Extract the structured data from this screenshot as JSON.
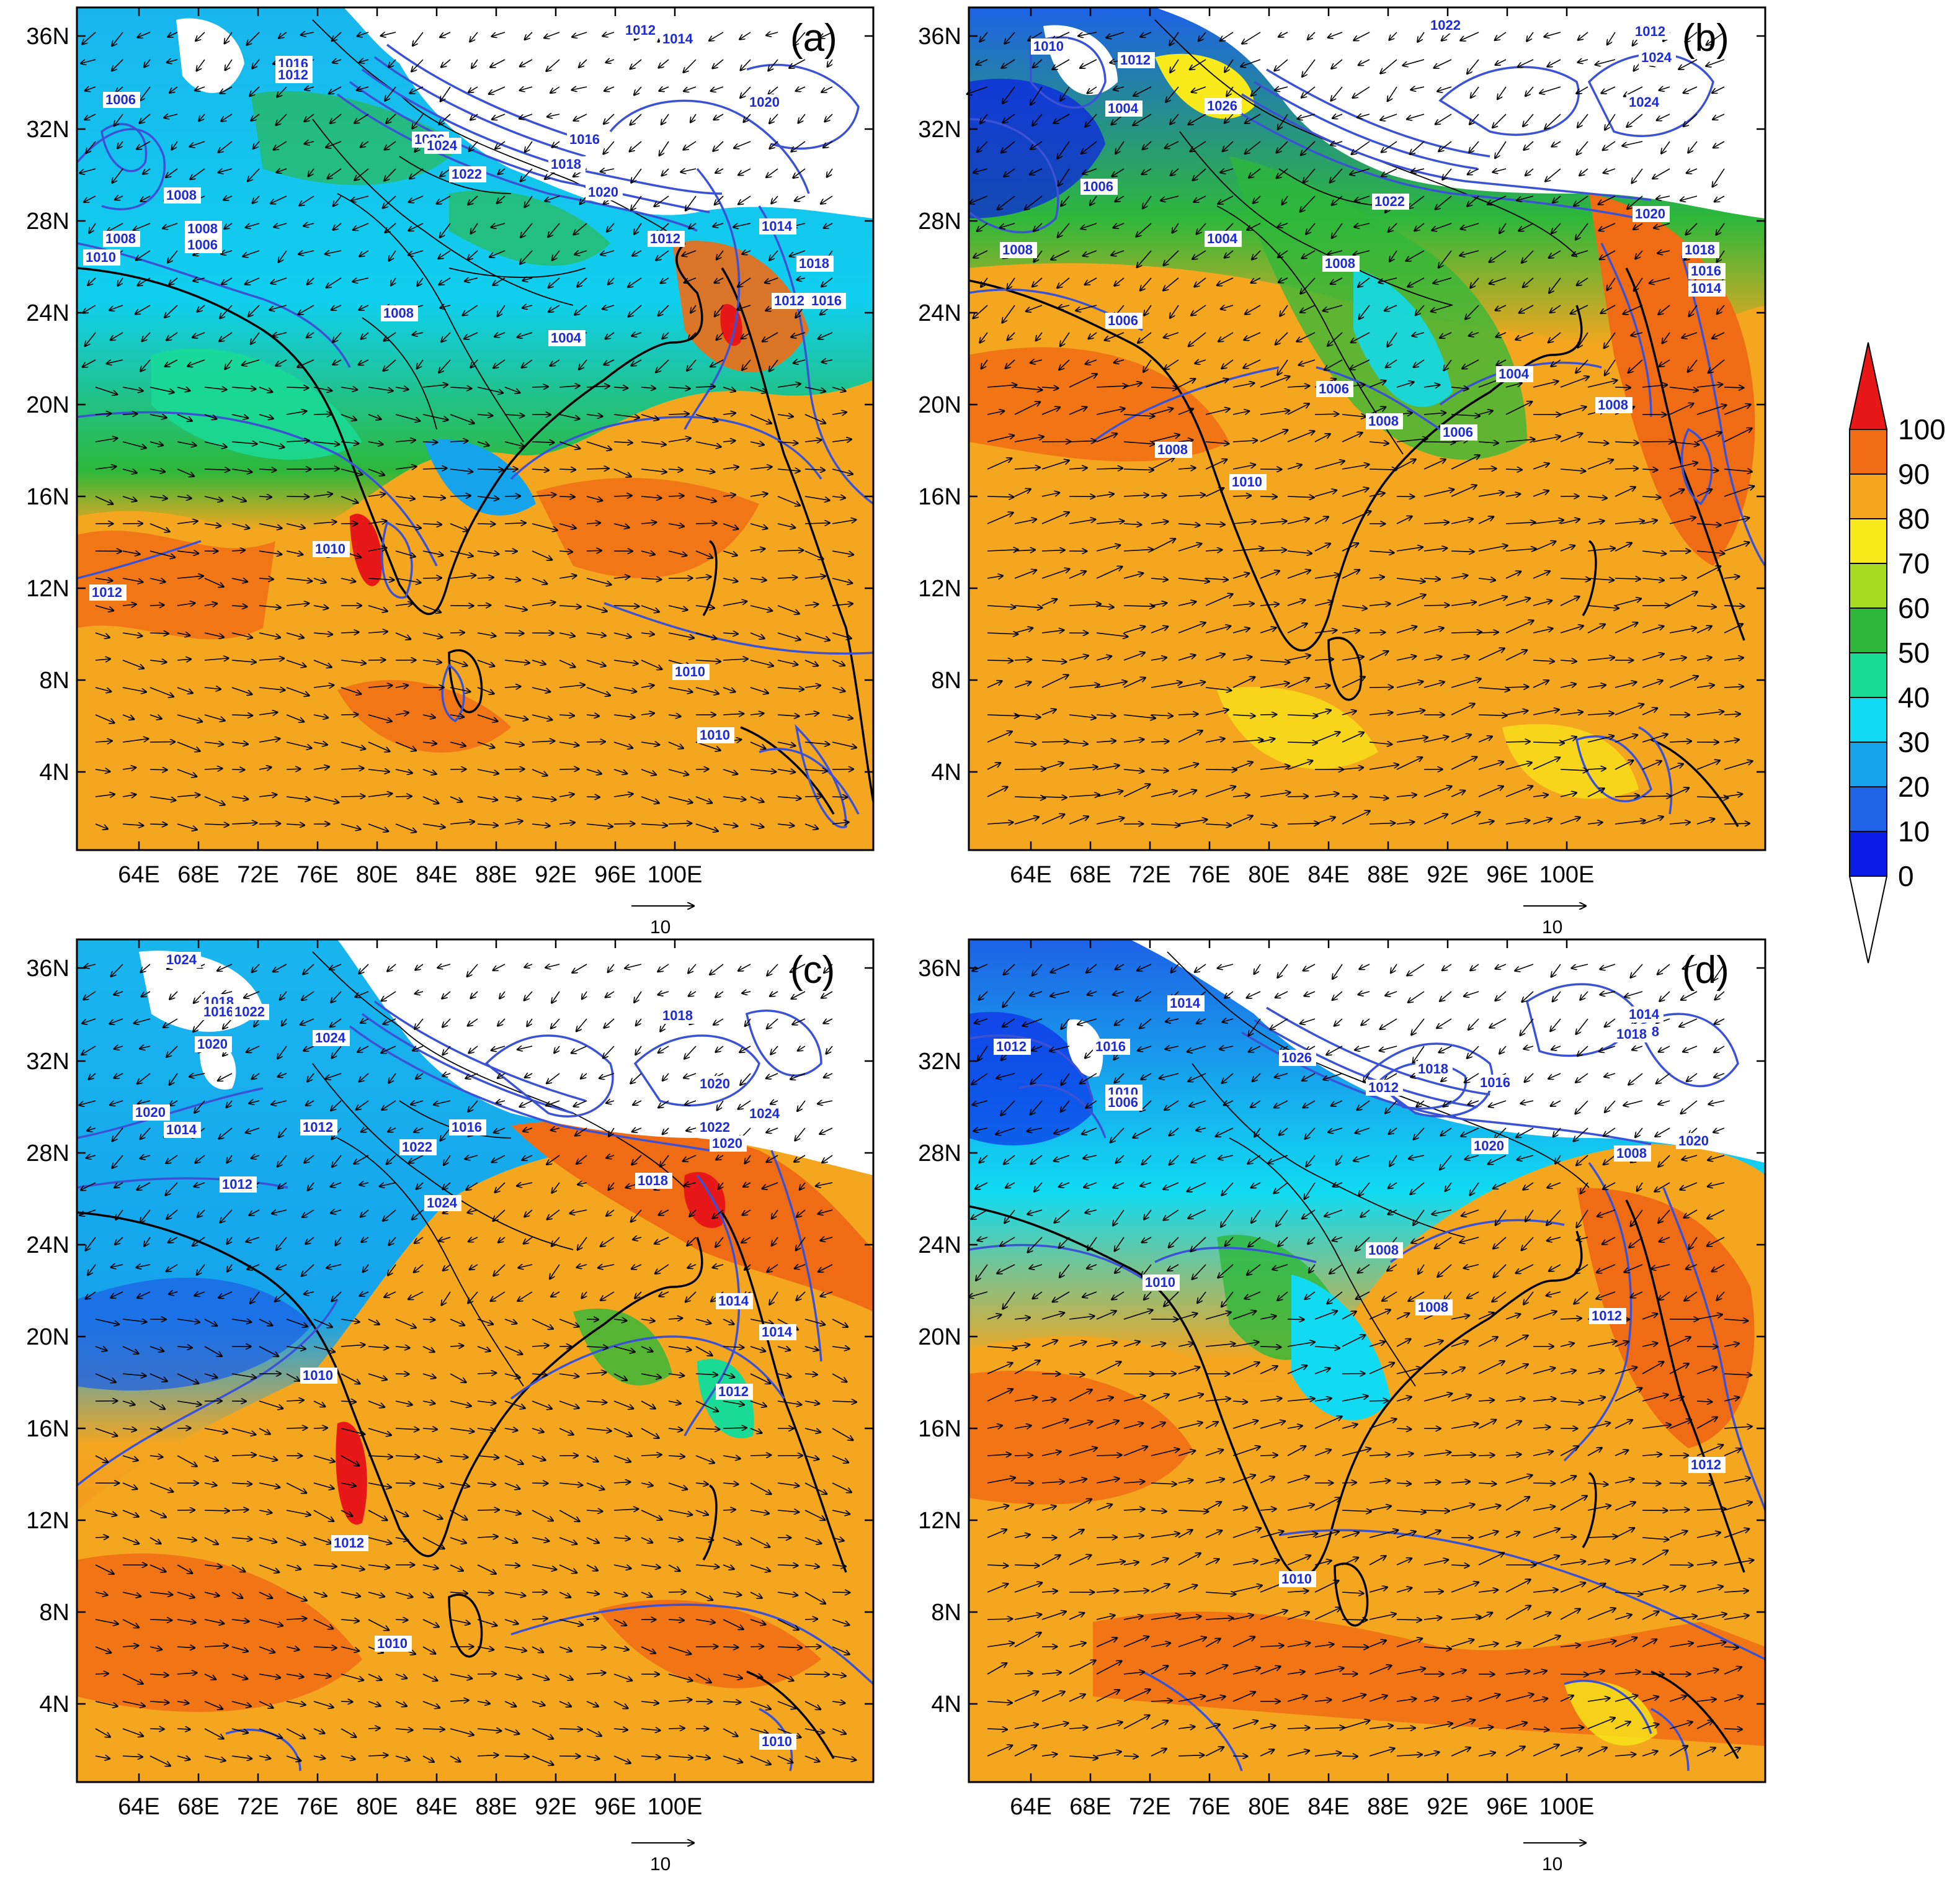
{
  "panels": [
    {
      "id": "a",
      "label": "(a)",
      "isobar_labels": [
        "1012",
        "1014",
        "1016",
        "1012",
        "1006",
        "1008",
        "1010",
        "1008",
        "1006",
        "1008",
        "1026",
        "1024",
        "1022",
        "1018",
        "1020",
        "1016",
        "1020",
        "1012",
        "1014",
        "1018",
        "1012",
        "1016",
        "1008",
        "1004",
        "1010",
        "1012",
        "1010",
        "1010"
      ]
    },
    {
      "id": "b",
      "label": "(b)",
      "isobar_labels": [
        "1010",
        "1012",
        "1022",
        "1024",
        "1024",
        "1004",
        "1026",
        "1006",
        "1008",
        "1022",
        "1012",
        "1020",
        "1018",
        "1016",
        "1014",
        "1004",
        "1008",
        "1006",
        "1004",
        "1006",
        "1008",
        "1008",
        "1010",
        "1006",
        "1008"
      ]
    },
    {
      "id": "c",
      "label": "(c)",
      "isobar_labels": [
        "1024",
        "1018",
        "1016",
        "1022",
        "1020",
        "1020",
        "1014",
        "1012",
        "1024",
        "1020",
        "1018",
        "1012",
        "1024",
        "1022",
        "1020",
        "1016",
        "1018",
        "1024",
        "1022",
        "1014",
        "1014",
        "1012",
        "1010",
        "1012",
        "1010",
        "1010"
      ]
    },
    {
      "id": "d",
      "label": "(d)",
      "isobar_labels": [
        "1014",
        "1016",
        "1012",
        "1026",
        "1018",
        "1012",
        "1014",
        "1018",
        "1010",
        "1006",
        "1016",
        "1020",
        "1018",
        "1020",
        "1008",
        "1008",
        "1010",
        "1008",
        "1012",
        "1012",
        "1010"
      ]
    }
  ],
  "axes": {
    "lat_ticks": [
      "36N",
      "32N",
      "28N",
      "24N",
      "20N",
      "16N",
      "12N",
      "8N",
      "4N"
    ],
    "lon_ticks": [
      "64E",
      "68E",
      "72E",
      "76E",
      "80E",
      "84E",
      "88E",
      "92E",
      "96E",
      "100E"
    ]
  },
  "reference_vector_label": "10",
  "colorbar": {
    "levels": [
      "0",
      "10",
      "20",
      "30",
      "40",
      "50",
      "60",
      "70",
      "80",
      "90",
      "100"
    ],
    "colors": [
      "#ffffff",
      "#0a1ce8",
      "#1e62e6",
      "#15a3ec",
      "#10dbf2",
      "#19db96",
      "#2db83a",
      "#a6dc1f",
      "#f7e91a",
      "#f4a61f",
      "#f06c14",
      "#e81818"
    ]
  },
  "chart_data": {
    "type": "heatmap",
    "lat_range": [
      "0N",
      "37N"
    ],
    "lon_range": [
      "60E",
      "102E"
    ],
    "colorbar_levels": [
      0,
      10,
      20,
      30,
      40,
      50,
      60,
      70,
      80,
      90,
      100
    ],
    "panels": [
      "(a)",
      "(b)",
      "(c)",
      "(d)"
    ],
    "reference_vector": 10
  }
}
